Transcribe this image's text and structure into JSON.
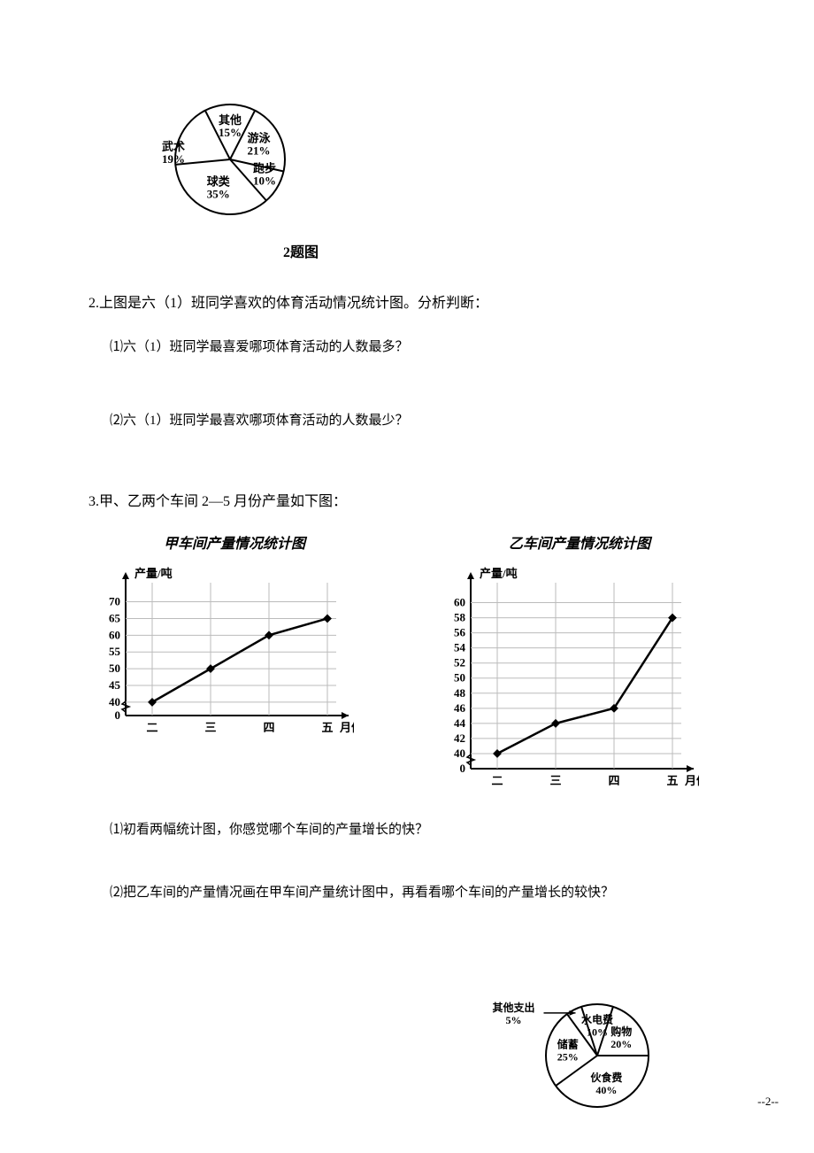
{
  "pie1": {
    "caption": "2题图",
    "slices": [
      {
        "label": "其他",
        "pct": "15%",
        "value": 15
      },
      {
        "label": "游泳",
        "pct": "21%",
        "value": 21
      },
      {
        "label": "跑步",
        "pct": "10%",
        "value": 10
      },
      {
        "label": "球类",
        "pct": "35%",
        "value": 35
      },
      {
        "label": "武术",
        "pct": "19%",
        "value": 19
      }
    ],
    "stroke": "#000000",
    "fill": "#ffffff",
    "width": 160,
    "height": 160,
    "font_size": 13
  },
  "q2": {
    "intro": "2.上图是六（1）班同学喜欢的体育活动情况统计图。分析判断：",
    "sub1": "⑴六（1）班同学最喜爱哪项体育活动的人数最多？",
    "sub2": "⑵六（1）班同学最喜欢哪项体育活动的人数最少？"
  },
  "q3": {
    "intro": "3.甲、乙两个车间 2—5 月份产量如下图：",
    "chart_a": {
      "title": "甲车间产量情况统计图",
      "ylabel": "产量/吨",
      "xlabel": "月份",
      "xticks": [
        "二",
        "三",
        "四",
        "五"
      ],
      "yticks": [
        "0",
        "40",
        "45",
        "50",
        "55",
        "60",
        "65",
        "70"
      ],
      "ytick_positions": [
        0,
        40,
        45,
        50,
        55,
        60,
        65,
        70
      ],
      "yrange": [
        36,
        72
      ],
      "points_y": [
        40,
        50,
        60,
        65
      ],
      "stroke": "#000000",
      "point_fill": "#000000",
      "grid_color": "#bbbbbb",
      "background": "#ffffff",
      "font_size": 13
    },
    "chart_b": {
      "title": "乙车间产量情况统计图",
      "ylabel": "产量/吨",
      "xlabel": "月份",
      "xticks": [
        "二",
        "三",
        "四",
        "五"
      ],
      "yticks": [
        "0",
        "40",
        "42",
        "44",
        "46",
        "48",
        "50",
        "52",
        "54",
        "56",
        "58",
        "60"
      ],
      "ytick_positions": [
        0,
        40,
        42,
        44,
        46,
        48,
        50,
        52,
        54,
        56,
        58,
        60
      ],
      "yrange": [
        38,
        61
      ],
      "points_y": [
        40,
        44,
        46,
        58
      ],
      "stroke": "#000000",
      "point_fill": "#000000",
      "grid_color": "#bbbbbb",
      "background": "#ffffff",
      "font_size": 13
    },
    "sub1": "⑴初看两幅统计图，你感觉哪个车间的产量增长的快？",
    "sub2": "⑵把乙车间的产量情况画在甲车间产量统计图中，再看看哪个车间的产量增长的较快？"
  },
  "pie2": {
    "slices": [
      {
        "label": "水电费",
        "pct": "10%",
        "value": 10
      },
      {
        "label": "购物",
        "pct": "20%",
        "value": 20
      },
      {
        "label": "伙食费",
        "pct": "40%",
        "value": 40
      },
      {
        "label": "储蓄",
        "pct": "25%",
        "value": 25
      },
      {
        "label": "其他支出",
        "pct": "5%",
        "value": 5
      }
    ],
    "external_label": "其他支出",
    "external_pct": "5%",
    "stroke": "#000000",
    "fill": "#ffffff",
    "font_size": 12
  },
  "page_number": "--2--"
}
